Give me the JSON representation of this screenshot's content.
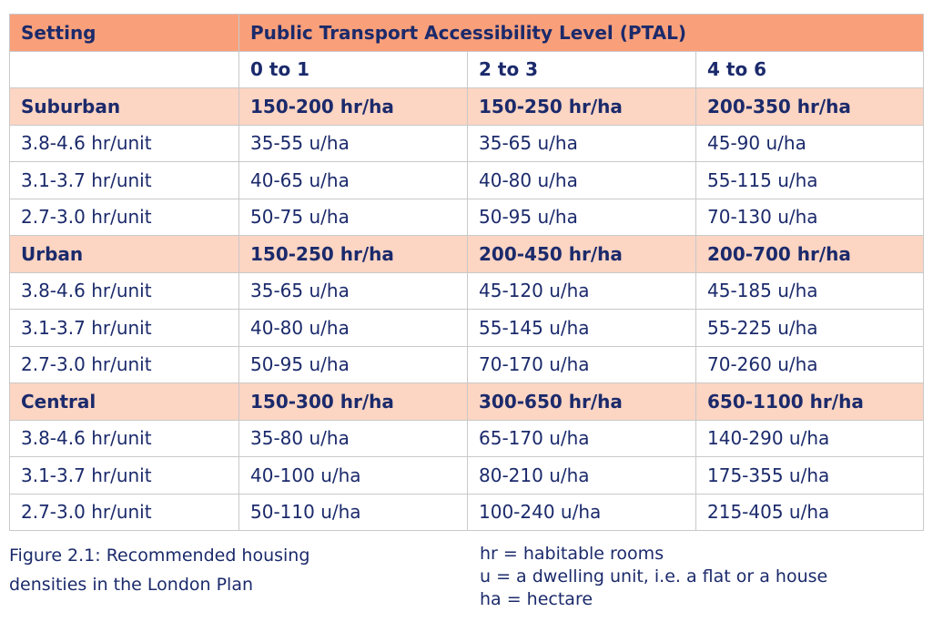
{
  "header": {
    "setting_label": "Setting",
    "ptal_label": "Public Transport Accessibility Level (PTAL)"
  },
  "ptal_bands": [
    "0 to 1",
    "2 to 3",
    "4 to 6"
  ],
  "groups": [
    {
      "name": "Suburban",
      "habitable_rooms": [
        "150-200 hr/ha",
        "150-250 hr/ha",
        "200-350 hr/ha"
      ],
      "rows": [
        {
          "setting": "3.8-4.6 hr/unit",
          "values": [
            "35-55 u/ha",
            "35-65 u/ha",
            "45-90 u/ha"
          ]
        },
        {
          "setting": "3.1-3.7 hr/unit",
          "values": [
            "40-65 u/ha",
            "40-80 u/ha",
            "55-115 u/ha"
          ]
        },
        {
          "setting": "2.7-3.0 hr/unit",
          "values": [
            "50-75 u/ha",
            "50-95 u/ha",
            "70-130 u/ha"
          ]
        }
      ]
    },
    {
      "name": "Urban",
      "habitable_rooms": [
        "150-250 hr/ha",
        "200-450 hr/ha",
        "200-700 hr/ha"
      ],
      "rows": [
        {
          "setting": "3.8-4.6 hr/unit",
          "values": [
            "35-65 u/ha",
            "45-120 u/ha",
            "45-185 u/ha"
          ]
        },
        {
          "setting": "3.1-3.7 hr/unit",
          "values": [
            "40-80 u/ha",
            "55-145 u/ha",
            "55-225 u/ha"
          ]
        },
        {
          "setting": "2.7-3.0 hr/unit",
          "values": [
            "50-95 u/ha",
            "70-170 u/ha",
            "70-260 u/ha"
          ]
        }
      ]
    },
    {
      "name": "Central",
      "habitable_rooms": [
        "150-300 hr/ha",
        "300-650 hr/ha",
        "650-1100 hr/ha"
      ],
      "rows": [
        {
          "setting": "3.8-4.6 hr/unit",
          "values": [
            "35-80 u/ha",
            "65-170 u/ha",
            "140-290 u/ha"
          ]
        },
        {
          "setting": "3.1-3.7 hr/unit",
          "values": [
            "40-100 u/ha",
            "80-210 u/ha",
            "175-355 u/ha"
          ]
        },
        {
          "setting": "2.7-3.0 hr/unit",
          "values": [
            "50-110 u/ha",
            "100-240 u/ha",
            "215-405 u/ha"
          ]
        }
      ]
    }
  ],
  "caption": {
    "line1": "Figure 2.1: Recommended housing",
    "line2": "densities in the London Plan"
  },
  "legend": [
    "hr = habitable rooms",
    "u = a dwelling unit, i.e. a flat or a house",
    "ha = hectare"
  ],
  "colors": {
    "header_bg": "#f9a07a",
    "group_bg": "#fcd5c3",
    "text": "#1b2a6b",
    "border": "#c9c9c9"
  }
}
